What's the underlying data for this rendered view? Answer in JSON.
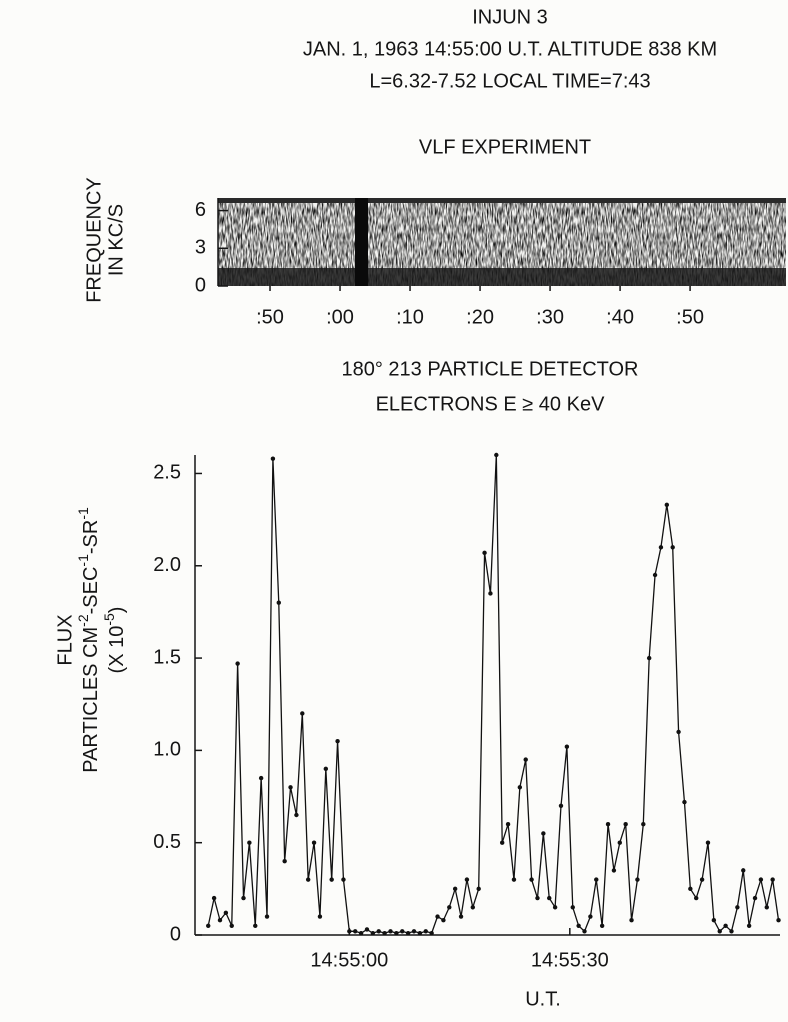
{
  "header": [
    "INJUN 3",
    "JAN. 1, 1963 14:55:00 U.T. ALTITUDE 838 KM",
    "L=6.32-7.52 LOCAL TIME=7:43"
  ],
  "chart_data": [
    {
      "type": "spectrogram",
      "title": "VLF EXPERIMENT",
      "ylabel": [
        "FREQUENCY",
        "IN KC/S"
      ],
      "ylim": [
        0,
        7
      ],
      "yticks": [
        0,
        3,
        6
      ],
      "xlim": [
        42.57,
        123.7
      ],
      "xticks": [
        {
          "value": 50,
          "label": ":50"
        },
        {
          "value": 60,
          "label": ":00"
        },
        {
          "value": 70,
          "label": ":10"
        },
        {
          "value": 80,
          "label": ":20"
        },
        {
          "value": 90,
          "label": ":30"
        },
        {
          "value": 100,
          "label": ":40"
        },
        {
          "value": 110,
          "label": ":50"
        }
      ]
    },
    {
      "type": "line",
      "title": [
        "180° 213 PARTICLE DETECTOR",
        "ELECTRONS E ≥ 40 KeV"
      ],
      "ylabel": [
        "FLUX",
        [
          "PARTICLES CM",
          "-2",
          "-SEC",
          "-1",
          "-SR",
          "-1"
        ],
        [
          "(X 10",
          "-5",
          ")"
        ]
      ],
      "xlabel": "U.T.",
      "color": "#111111",
      "xlim": [
        53679,
        53758.6
      ],
      "xticks": [
        {
          "value": 53700,
          "label": "14:55:00"
        },
        {
          "value": 53730,
          "label": "14:55:30"
        }
      ],
      "ylim": [
        0,
        2.6
      ],
      "yticks": [
        0,
        0.5,
        {
          "value": 1,
          "label": "1.0"
        },
        1.5,
        {
          "value": 2,
          "label": "2.0"
        },
        2.5
      ],
      "x": [
        53680.8,
        53681.6,
        53682.4,
        53683.2,
        53684,
        53684.8,
        53685.6,
        53686.4,
        53687.2,
        53688,
        53688.8,
        53689.6,
        53690.4,
        53691.2,
        53692,
        53692.8,
        53693.6,
        53694.4,
        53695.2,
        53696,
        53696.8,
        53697.6,
        53698.4,
        53699.2,
        53700,
        53700.8,
        53701.6,
        53702.4,
        53703.2,
        53704,
        53704.8,
        53705.6,
        53706.4,
        53707.2,
        53708,
        53708.8,
        53709.6,
        53710.4,
        53711.2,
        53712,
        53712.8,
        53713.6,
        53714.4,
        53715.2,
        53716,
        53716.8,
        53717.6,
        53718.4,
        53719.2,
        53720,
        53720.8,
        53721.6,
        53722.4,
        53723.2,
        53724,
        53724.8,
        53725.6,
        53726.4,
        53727.2,
        53728,
        53728.8,
        53729.6,
        53730.4,
        53731.2,
        53732,
        53732.8,
        53733.6,
        53734.4,
        53735.2,
        53736,
        53736.8,
        53737.6,
        53738.4,
        53739.2,
        53740,
        53740.8,
        53741.6,
        53742.4,
        53743.2,
        53744,
        53744.8,
        53745.6,
        53746.4,
        53747.2,
        53748,
        53748.8,
        53749.6,
        53750.4,
        53751.2,
        53752,
        53752.8,
        53753.6,
        53754.4,
        53755.2,
        53756,
        53756.8,
        53757.6,
        53758.4
      ],
      "values": [
        0.05,
        0.2,
        0.08,
        0.12,
        0.05,
        1.47,
        0.2,
        0.5,
        0.05,
        0.85,
        0.1,
        2.58,
        1.8,
        0.4,
        0.8,
        0.65,
        1.2,
        0.3,
        0.5,
        0.1,
        0.9,
        0.3,
        1.05,
        0.3,
        0.02,
        0.02,
        0.01,
        0.03,
        0.01,
        0.02,
        0.01,
        0.02,
        0.01,
        0.02,
        0.01,
        0.02,
        0.01,
        0.02,
        0.01,
        0.1,
        0.08,
        0.15,
        0.25,
        0.1,
        0.3,
        0.15,
        0.25,
        2.07,
        1.85,
        2.6,
        0.5,
        0.6,
        0.3,
        0.8,
        0.95,
        0.3,
        0.2,
        0.55,
        0.2,
        0.15,
        0.7,
        1.02,
        0.15,
        0.05,
        0.02,
        0.1,
        0.3,
        0.05,
        0.6,
        0.35,
        0.5,
        0.6,
        0.08,
        0.3,
        0.6,
        1.5,
        1.95,
        2.1,
        2.33,
        2.1,
        1.1,
        0.72,
        0.25,
        0.2,
        0.3,
        0.5,
        0.08,
        0.02,
        0.05,
        0.02,
        0.15,
        0.35,
        0.05,
        0.2,
        0.3,
        0.15,
        0.3,
        0.08
      ]
    }
  ]
}
